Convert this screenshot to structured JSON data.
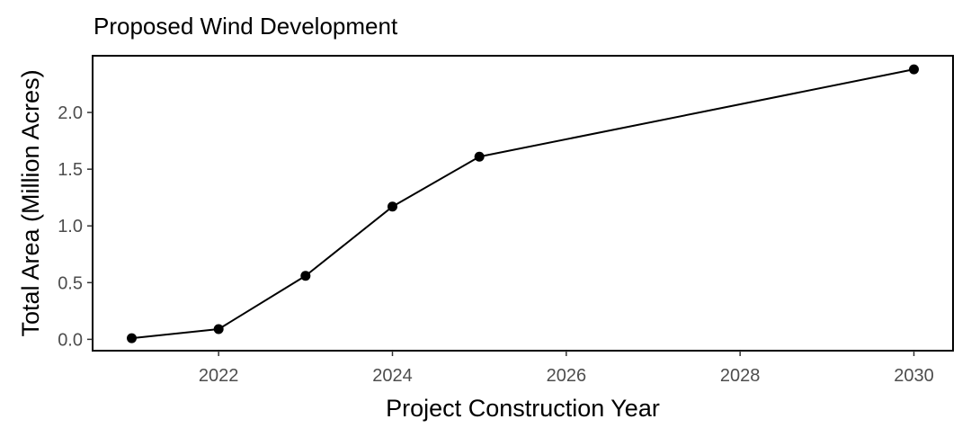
{
  "chart_data": {
    "type": "line",
    "title": "Proposed Wind Development",
    "xlabel": "Project Construction Year",
    "ylabel": "Total Area (Million Acres)",
    "x": [
      2021,
      2022,
      2023,
      2024,
      2025,
      2030
    ],
    "series": [
      {
        "values": [
          0.01,
          0.09,
          0.56,
          1.17,
          1.61,
          2.38
        ]
      }
    ],
    "xlim": [
      2020.55,
      2030.45
    ],
    "ylim": [
      -0.1,
      2.5
    ],
    "x_ticks": [
      2022,
      2024,
      2026,
      2028,
      2030
    ],
    "y_ticks": [
      0.0,
      0.5,
      1.0,
      1.5,
      2.0
    ],
    "x_tick_labels": [
      "2022",
      "2024",
      "2026",
      "2028",
      "2030"
    ],
    "y_tick_labels": [
      "0.0",
      "0.5",
      "1.0",
      "1.5",
      "2.0"
    ],
    "grid": false,
    "legend": "none",
    "line_color": "#000000",
    "point_color": "#000000"
  }
}
